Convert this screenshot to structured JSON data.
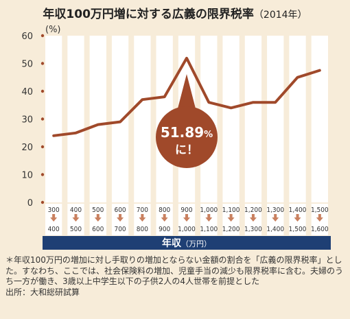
{
  "title": "年収100万円増に対する広義の限界税率",
  "title_year": "（2014年）",
  "y_unit": "(%)",
  "callout": {
    "value": "51.89",
    "unit": "%",
    "suffix": "に！"
  },
  "xaxis_title": "年収",
  "xaxis_unit": "（万円）",
  "note": "＊年収100万円の増加に対し手取りの増加とならない金額の割合を「広義の限界税率」とした。すなわち、ここでは、社会保険料の増加、児童手当の減少も限界税率に含む。夫婦のうち一方が働き、3歳以上中学生以下の子供2人の4人世帯を前提とした",
  "source": "出所：大和総研試算",
  "colors": {
    "line": "#a0492a",
    "marker": "#a0492a",
    "arrow": "#c9805f",
    "stripe": "#ffffff",
    "xbar": "#1e3f74",
    "background": "#f7ecd9"
  },
  "chart_data": {
    "type": "line",
    "title": "年収100万円増に対する広義の限界税率（2014年）",
    "xlabel": "年収（万円）",
    "ylabel": "(%)",
    "ylim": [
      0,
      60
    ],
    "yticks": [
      0,
      10,
      20,
      30,
      40,
      50,
      60
    ],
    "categories": [
      {
        "from": "300",
        "to": "400"
      },
      {
        "from": "400",
        "to": "500"
      },
      {
        "from": "500",
        "to": "600"
      },
      {
        "from": "600",
        "to": "700"
      },
      {
        "from": "700",
        "to": "800"
      },
      {
        "from": "800",
        "to": "900"
      },
      {
        "from": "900",
        "to": "1,000"
      },
      {
        "from": "1,000",
        "to": "1,100"
      },
      {
        "from": "1,100",
        "to": "1,200"
      },
      {
        "from": "1,200",
        "to": "1,300"
      },
      {
        "from": "1,300",
        "to": "1,400"
      },
      {
        "from": "1,400",
        "to": "1,500"
      },
      {
        "from": "1,500",
        "to": "1,600"
      }
    ],
    "values": [
      24,
      25,
      28,
      29,
      37,
      38,
      51.89,
      36,
      34,
      36,
      36,
      45,
      47.5
    ],
    "annotation": {
      "category_index": 6,
      "text": "51.89%に！"
    },
    "grid": false
  }
}
